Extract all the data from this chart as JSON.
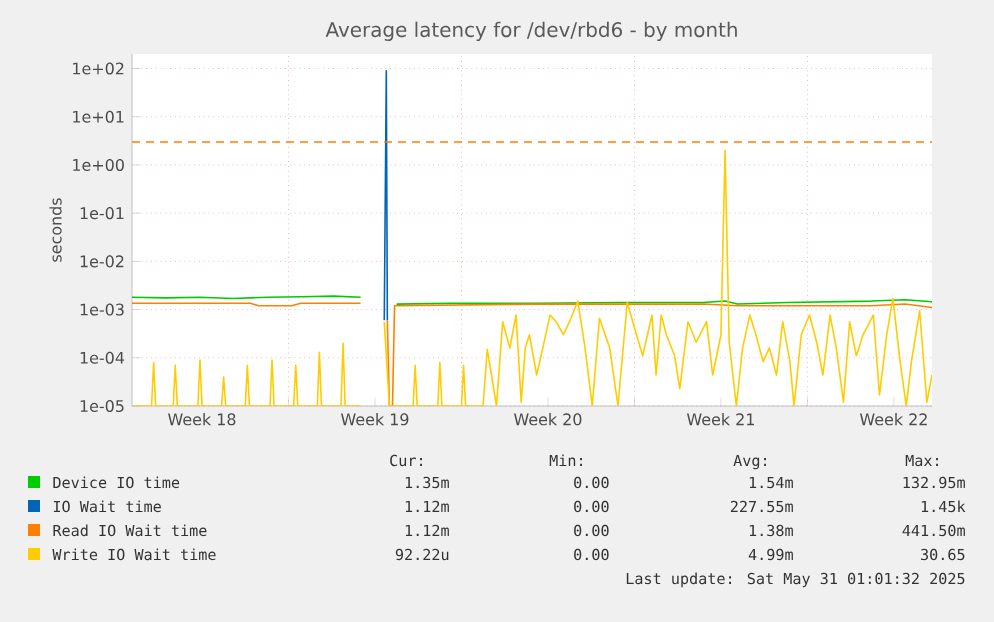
{
  "chart_data": {
    "type": "line",
    "title": "Average latency for /dev/rbd6 - by month",
    "ylabel": "seconds",
    "log": "y",
    "grid": true,
    "legend": "bottom",
    "marker": "none",
    "xlim": [
      "2025-04-28T16:00",
      "2025-05-31T01:00"
    ],
    "ylim": [
      1e-05,
      200
    ],
    "xticks": [
      {
        "value": "2025-05-01T12:00",
        "label": "Week 18"
      },
      {
        "value": "2025-05-05",
        "label": null
      },
      {
        "value": "2025-05-08T12:00",
        "label": "Week 19"
      },
      {
        "value": "2025-05-12",
        "label": null
      },
      {
        "value": "2025-05-15T12:00",
        "label": "Week 20"
      },
      {
        "value": "2025-05-19",
        "label": null
      },
      {
        "value": "2025-05-22T12:00",
        "label": "Week 21"
      },
      {
        "value": "2025-05-26",
        "label": null
      },
      {
        "value": "2025-05-29T12:00",
        "label": "Week 22"
      }
    ],
    "yticks": [
      {
        "value": 1e-05,
        "label": "1e-05"
      },
      {
        "value": 0.0001,
        "label": "1e-04"
      },
      {
        "value": 0.001,
        "label": "1e-03"
      },
      {
        "value": 0.01,
        "label": "1e-02"
      },
      {
        "value": 0.1,
        "label": "1e-01"
      },
      {
        "value": 1,
        "label": "1e+00"
      },
      {
        "value": 10,
        "label": "1e+01"
      },
      {
        "value": 100,
        "label": "1e+02"
      }
    ],
    "ref_lines": [
      {
        "axis": "y",
        "value": 3,
        "color": "#ff8000",
        "line_style": "dashed"
      }
    ],
    "series": [
      {
        "name": "Device IO time",
        "color": "#00cc00",
        "x": [
          "2025-04-28T16:00",
          "2025-04-30T01:00",
          "2025-05-01T10:00",
          "2025-05-02T18:00",
          "2025-05-04T03:00",
          "2025-05-05T12:00",
          "2025-05-06T20:00",
          "2025-05-07T22:00",
          "2025-05-08T05:00",
          "2025-05-09T09:00",
          "2025-05-11T14:00",
          "2025-05-15T00:00",
          "2025-05-18T10:00",
          "2025-05-21T19:00",
          "2025-05-22T16:00",
          "2025-05-23T04:00",
          "2025-05-25T05:00",
          "2025-05-28T14:00",
          "2025-05-29T23:00",
          "2025-05-31T01:00"
        ],
        "values": [
          0.0018,
          0.00175,
          0.0018,
          0.0017,
          0.0018,
          0.00185,
          0.0019,
          0.0018,
          null,
          0.0013,
          0.00135,
          0.00135,
          0.0014,
          0.0014,
          0.0015,
          0.0013,
          0.0014,
          0.0015,
          0.0016,
          0.00145
        ]
      },
      {
        "name": "IO Wait time",
        "color": "#0066b3",
        "x": [
          "2025-05-08T21:00",
          "2025-05-08T23:00",
          "2025-05-09T00:00"
        ],
        "values": [
          0.0006,
          90,
          0.0006
        ]
      },
      {
        "name": "Read IO Wait time",
        "color": "#ff8000",
        "x": [
          "2025-04-28T16:00",
          "2025-05-03T11:00",
          "2025-05-03T19:00",
          "2025-05-05T03:00",
          "2025-05-05T12:00",
          "2025-05-07T22:00",
          "2025-05-08T05:00",
          "2025-05-09T00:00",
          "2025-05-09T02:00",
          "2025-05-09T05:00",
          "2025-05-09T07:00",
          "2025-05-15T00:00",
          "2025-05-21T19:00",
          "2025-05-23T04:00",
          "2025-05-28T14:00",
          "2025-05-29T23:00",
          "2025-05-31T01:00"
        ],
        "values": [
          0.00135,
          0.00135,
          0.0012,
          0.0012,
          0.00135,
          0.00135,
          null,
          0.0006,
          1e-05,
          1e-05,
          0.0012,
          0.0013,
          0.0013,
          0.0012,
          0.0012,
          0.0013,
          0.0011
        ]
      },
      {
        "name": "Write IO Wait time",
        "color": "#ffcc00",
        "x": [
          "2025-04-28T16:00",
          "2025-04-29T11:00",
          "2025-04-29T13:00",
          "2025-04-29T15:00",
          "2025-04-30T08:00",
          "2025-04-30T10:00",
          "2025-04-30T12:00",
          "2025-05-01T08:00",
          "2025-05-01T10:00",
          "2025-05-01T12:00",
          "2025-05-02T07:00",
          "2025-05-02T09:00",
          "2025-05-02T11:00",
          "2025-05-03T06:00",
          "2025-05-03T08:00",
          "2025-05-03T10:00",
          "2025-05-04T06:00",
          "2025-05-04T08:00",
          "2025-05-04T10:00",
          "2025-05-05T05:00",
          "2025-05-05T07:00",
          "2025-05-05T09:00",
          "2025-05-06T04:00",
          "2025-05-06T06:00",
          "2025-05-06T08:00",
          "2025-05-07T03:00",
          "2025-05-07T05:00",
          "2025-05-07T07:00",
          "2025-05-07T22:00",
          "2025-05-08T05:00",
          "2025-05-08T21:00",
          "2025-05-09T02:00",
          "2025-05-10T01:00",
          "2025-05-10T03:00",
          "2025-05-10T05:00",
          "2025-05-11T01:00",
          "2025-05-11T03:00",
          "2025-05-11T05:00",
          "2025-05-12T00:00",
          "2025-05-12T02:00",
          "2025-05-12T04:00",
          "2025-05-12T21:00",
          "2025-05-13T01:00",
          "2025-05-13T10:00",
          "2025-05-13T16:00",
          "2025-05-13T23:00",
          "2025-05-14T05:00",
          "2025-05-14T10:00",
          "2025-05-14T14:00",
          "2025-05-14T18:00",
          "2025-05-15T01:00",
          "2025-05-15T07:00",
          "2025-05-15T14:00",
          "2025-05-15T20:00",
          "2025-05-16T03:00",
          "2025-05-16T09:00",
          "2025-05-16T17:00",
          "2025-05-17T00:00",
          "2025-05-17T07:00",
          "2025-05-17T14:00",
          "2025-05-18T00:00",
          "2025-05-18T08:00",
          "2025-05-18T17:00",
          "2025-05-19T02:00",
          "2025-05-19T08:00",
          "2025-05-19T17:00",
          "2025-05-19T21:00",
          "2025-05-20T02:00",
          "2025-05-20T07:00",
          "2025-05-20T15:00",
          "2025-05-20T20:00",
          "2025-05-21T04:00",
          "2025-05-21T12:00",
          "2025-05-21T22:00",
          "2025-05-22T04:00",
          "2025-05-22T12:00",
          "2025-05-22T16:00",
          "2025-05-22T20:00",
          "2025-05-23T03:00",
          "2025-05-23T09:00",
          "2025-05-23T16:00",
          "2025-05-23T22:00",
          "2025-05-24T05:00",
          "2025-05-24T11:00",
          "2025-05-24T18:00",
          "2025-05-25T00:00",
          "2025-05-25T07:00",
          "2025-05-25T11:00",
          "2025-05-25T18:00",
          "2025-05-26T02:00",
          "2025-05-26T09:00",
          "2025-05-26T15:00",
          "2025-05-26T22:00",
          "2025-05-27T04:00",
          "2025-05-27T11:00",
          "2025-05-27T17:00",
          "2025-05-27T23:30",
          "2025-05-28T06:00",
          "2025-05-28T16:00",
          "2025-05-28T22:00",
          "2025-05-29T05:00",
          "2025-05-29T11:00",
          "2025-05-29T18:00",
          "2025-05-30T00:00",
          "2025-05-30T05:00",
          "2025-05-30T13:00",
          "2025-05-30T20:00",
          "2025-05-31T01:00"
        ],
        "values": [
          1e-05,
          1e-05,
          8e-05,
          1e-05,
          1e-05,
          7e-05,
          1e-05,
          1e-05,
          9e-05,
          1e-05,
          1e-05,
          4e-05,
          1e-05,
          1e-05,
          7e-05,
          1e-05,
          1e-05,
          9e-05,
          1e-05,
          1e-05,
          7e-05,
          1e-05,
          1e-05,
          0.00013,
          1e-05,
          1e-05,
          0.0002,
          1e-05,
          1e-05,
          null,
          0.00055,
          1e-05,
          1e-05,
          7e-05,
          1e-05,
          1e-05,
          8e-05,
          1e-05,
          1e-05,
          7e-05,
          1e-05,
          1e-05,
          0.00015,
          1e-05,
          0.00056,
          0.00016,
          0.00077,
          1.2e-05,
          0.00016,
          0.0003,
          4.4e-05,
          0.00016,
          0.00077,
          0.00056,
          0.0003,
          0.00056,
          0.0015,
          0.00016,
          1e-05,
          0.00066,
          0.00016,
          1e-05,
          0.0014,
          0.0003,
          0.00011,
          0.00077,
          4.4e-05,
          0.00077,
          0.0003,
          0.00011,
          2.3e-05,
          0.00056,
          0.00021,
          0.00056,
          4.4e-05,
          0.0003,
          2,
          0.00021,
          1e-05,
          0.00016,
          0.00077,
          0.0003,
          8.3e-05,
          0.00016,
          4.4e-05,
          0.00056,
          8.3e-05,
          1e-05,
          0.0003,
          0.00077,
          0.00021,
          4.4e-05,
          0.00077,
          0.00016,
          1.2e-05,
          0.00056,
          0.00011,
          0.0003,
          0.00077,
          1.7e-05,
          0.0003,
          0.0017,
          8.3e-05,
          1e-05,
          8.3e-05,
          0.00094,
          1.2e-05,
          4.4e-05
        ]
      }
    ],
    "annotations": [
      "Cur:",
      "Min:",
      "Avg:",
      "Max:",
      "1.35m",
      "0.00",
      "1.54m",
      "132.95m",
      "1.12m",
      "0.00",
      "227.55m",
      "1.45k",
      "1.12m",
      "0.00",
      "1.38m",
      "441.50m",
      "92.22u",
      "0.00",
      "4.99m",
      "30.65",
      "Last update: Sat May 31 01:01:32 2025"
    ]
  }
}
